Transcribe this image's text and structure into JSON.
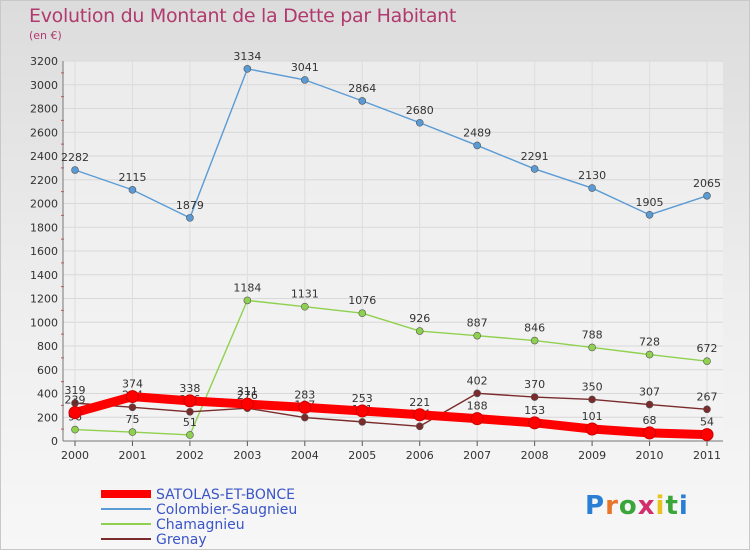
{
  "title": "Evolution du Montant de la Dette par Habitant",
  "subtitle": "(en €)",
  "logo": {
    "text": "Proxiti",
    "colors": [
      "#2a7fd4",
      "#e8752a",
      "#3aa63a",
      "#d12e6b",
      "#e8c21e",
      "#3aa63a",
      "#2a7fd4"
    ]
  },
  "chart_data": {
    "type": "line",
    "x": [
      "2000",
      "2001",
      "2002",
      "2003",
      "2004",
      "2005",
      "2006",
      "2007",
      "2008",
      "2009",
      "2010",
      "2011"
    ],
    "ylim": [
      0,
      3200
    ],
    "yticks": [
      "0",
      "200",
      "400",
      "600",
      "800",
      "1000",
      "1200",
      "1400",
      "1600",
      "1800",
      "2000",
      "2200",
      "2400",
      "2600",
      "2800",
      "3000",
      "3200"
    ],
    "grid": true,
    "legend_position": "bottom-left",
    "series": [
      {
        "name": "SATOLAS-ET-BONCE",
        "color": "#ff0000",
        "values": [
          239,
          374,
          338,
          311,
          283,
          253,
          221,
          188,
          153,
          101,
          68,
          54
        ]
      },
      {
        "name": "Colombier-Saugnieu",
        "color": "#5a9bd5",
        "values": [
          2282,
          2115,
          1879,
          3134,
          3041,
          2864,
          2680,
          2489,
          2291,
          2130,
          1905,
          2065
        ]
      },
      {
        "name": "Chamagnieu",
        "color": "#8fd14f",
        "values": [
          96,
          75,
          51,
          1184,
          1131,
          1076,
          926,
          887,
          846,
          788,
          728,
          672
        ]
      },
      {
        "name": "Grenay",
        "color": "#7a2b2b",
        "values": [
          319,
          284,
          246,
          276,
          197,
          161,
          124,
          402,
          370,
          350,
          307,
          267
        ]
      }
    ]
  }
}
